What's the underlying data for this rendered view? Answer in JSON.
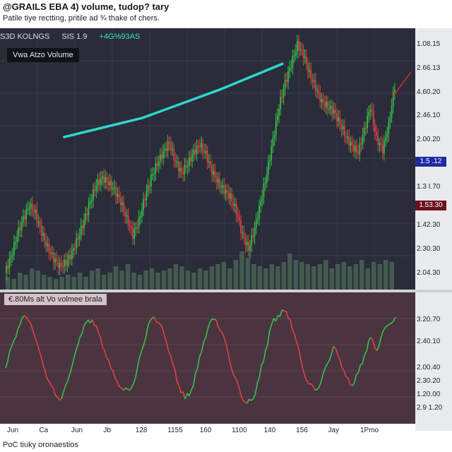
{
  "header": {
    "title": "@GRAILS EBA 4) volume, tudop? tary",
    "subtitle": "Patile tiye rectting, pritile ad ¾ thake of chers."
  },
  "status": {
    "symbol": "S3D KOLNGS",
    "price": "SIS 1.9",
    "change": "+4G%93AS"
  },
  "legend": {
    "main": "Vwa Atzo Volume",
    "sub": "€.80Ms alt Vo volmee brala"
  },
  "price_axis": [
    {
      "label": "1.08.15",
      "value": 2.95
    },
    {
      "label": "2.66.13",
      "value": 2.7
    },
    {
      "label": "4.60.20",
      "value": 2.45
    },
    {
      "label": "2.46.10",
      "value": 2.2
    },
    {
      "label": "2.00.20",
      "value": 1.95
    },
    {
      "label": "1.3 I.70",
      "value": 1.45
    },
    {
      "label": "1.42.30",
      "value": 1.05
    },
    {
      "label": "2.30.30",
      "value": 0.8
    },
    {
      "label": "2.04.30",
      "value": 0.55
    }
  ],
  "badges": [
    {
      "label": "1.5 .12",
      "value": 1.72,
      "color": "#1f2aa0"
    },
    {
      "label": "1.53.30",
      "value": 1.26,
      "color": "#6b1020"
    }
  ],
  "osc_axis": [
    {
      "label": "3.20.70",
      "value": 0.85
    },
    {
      "label": "2.40.10",
      "value": 0.6
    },
    {
      "label": "2.00.40",
      "value": 0.3
    },
    {
      "label": "2.30.20",
      "value": 0.15
    },
    {
      "label": "1.20.00",
      "value": -0.0
    },
    {
      "label": "2.9 1.20",
      "value": -0.15
    }
  ],
  "x_labels": [
    "Jun",
    "Ca",
    "Jun",
    "Jb",
    "128",
    "1155",
    "160",
    "1100",
    "140",
    "156",
    "Jay",
    "1Pmo"
  ],
  "footer": "PoC tiuky oronaestios",
  "colors": {
    "up": "#35c04a",
    "down": "#e04040",
    "trend": "#2ad8d0",
    "volume": "#4f6a55",
    "bg": "#2a2c3a",
    "sub_bg": "#4a3440"
  },
  "chart_data": [
    {
      "type": "candlestick",
      "title": "Vwa Atzo Volume",
      "ylim": [
        0.45,
        3.05
      ],
      "price_series": [
        0.55,
        0.72,
        0.95,
        1.12,
        1.26,
        1.18,
        0.98,
        0.82,
        0.7,
        0.62,
        0.66,
        0.76,
        0.92,
        1.1,
        1.3,
        1.48,
        1.55,
        1.5,
        1.42,
        1.3,
        1.12,
        0.95,
        1.1,
        1.35,
        1.55,
        1.7,
        1.82,
        1.92,
        1.72,
        1.6,
        1.7,
        1.82,
        1.9,
        1.8,
        1.62,
        1.5,
        1.42,
        1.35,
        1.2,
        0.95,
        0.8,
        1.02,
        1.3,
        1.6,
        1.95,
        2.3,
        2.55,
        2.75,
        2.95,
        2.85,
        2.65,
        2.5,
        2.35,
        2.3,
        2.25,
        2.12,
        1.98,
        1.88,
        1.82,
        2.05,
        2.3,
        1.96,
        1.85,
        2.1,
        2.52
      ],
      "volume_series": [
        0.3,
        0.25,
        0.4,
        0.35,
        0.5,
        0.45,
        0.35,
        0.3,
        0.25,
        0.3,
        0.35,
        0.3,
        0.4,
        0.3,
        0.45,
        0.5,
        0.35,
        0.4,
        0.55,
        0.45,
        0.6,
        0.4,
        0.35,
        0.45,
        0.5,
        0.4,
        0.45,
        0.5,
        0.6,
        0.55,
        0.45,
        0.4,
        0.5,
        0.45,
        0.55,
        0.6,
        0.65,
        0.5,
        0.7,
        0.9,
        0.75,
        0.6,
        0.55,
        0.5,
        0.6,
        0.55,
        0.65,
        0.85,
        0.7,
        0.65,
        0.6,
        0.55,
        0.6,
        0.7,
        0.5,
        0.6,
        0.65,
        0.55,
        0.6,
        0.7,
        0.5,
        0.65,
        0.6,
        0.7,
        0.65
      ],
      "trendline": [
        [
          0.15,
          1.98
        ],
        [
          0.35,
          2.18
        ],
        [
          0.55,
          2.48
        ],
        [
          0.71,
          2.75
        ]
      ]
    },
    {
      "type": "line",
      "title": "€.80Ms alt Vo volmee brala",
      "ylim": [
        -0.25,
        1.0
      ],
      "values": [
        0.3,
        0.55,
        0.75,
        0.9,
        0.82,
        0.6,
        0.35,
        0.15,
        0.0,
        -0.05,
        0.15,
        0.4,
        0.65,
        0.82,
        0.85,
        0.7,
        0.5,
        0.3,
        0.15,
        0.05,
        0.05,
        0.2,
        0.5,
        0.78,
        0.88,
        0.8,
        0.6,
        0.35,
        0.1,
        -0.05,
        0.05,
        0.3,
        0.6,
        0.82,
        0.85,
        0.7,
        0.45,
        0.2,
        0.0,
        -0.1,
        -0.05,
        0.2,
        0.5,
        0.8,
        0.9,
        0.95,
        0.85,
        0.6,
        0.3,
        0.12,
        0.05,
        0.15,
        0.35,
        0.55,
        0.4,
        0.2,
        0.1,
        0.25,
        0.45,
        0.65,
        0.5,
        0.72,
        0.8,
        0.88
      ]
    }
  ]
}
